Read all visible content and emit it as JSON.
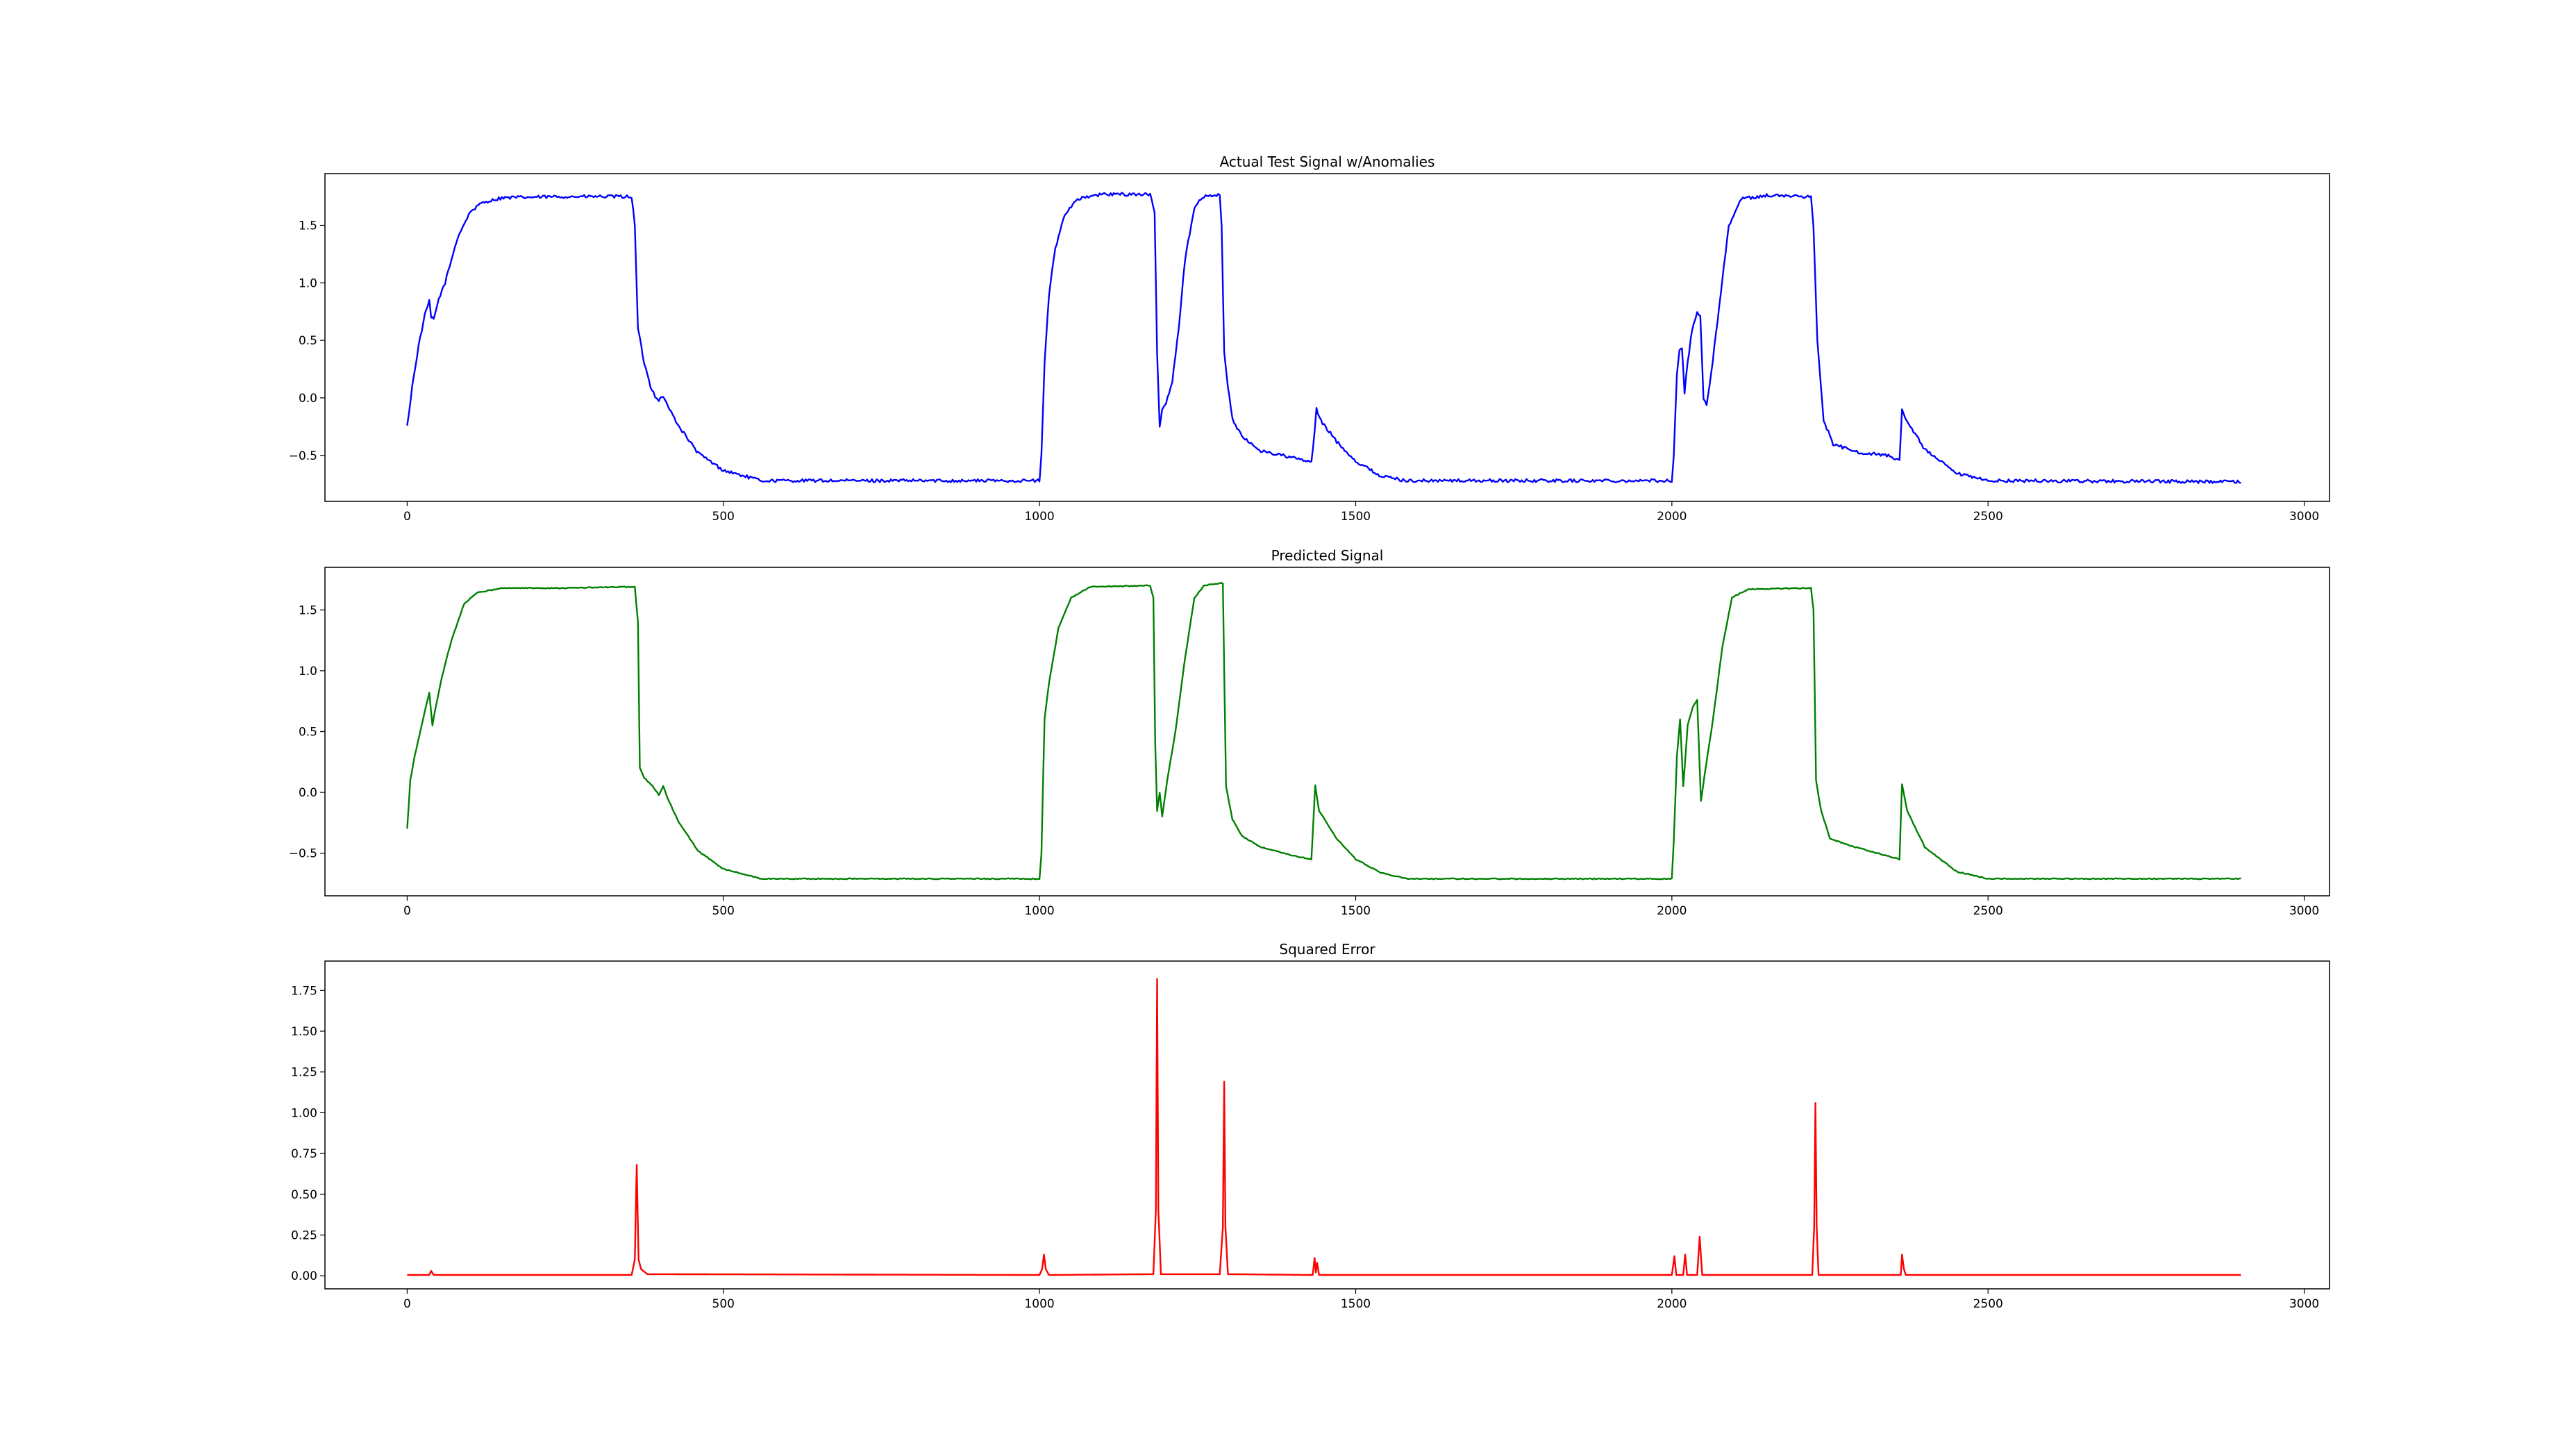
{
  "chart_data": [
    {
      "type": "line",
      "title": "Actual Test Signal w/Anomalies",
      "xlabel": "",
      "ylabel": "",
      "xlim": [
        -130,
        3040
      ],
      "ylim": [
        -0.9,
        1.95
      ],
      "xticks": [
        0,
        500,
        1000,
        1500,
        2000,
        2500,
        3000
      ],
      "yticks": [
        -0.5,
        0.0,
        0.5,
        1.0,
        1.5
      ],
      "ytick_labels": [
        "−0.5",
        "0.0",
        "0.5",
        "1.0",
        "1.5"
      ],
      "grid": false,
      "noise": 0.014,
      "series": [
        {
          "color": "#0000ff",
          "points": [
            [
              0,
              -0.25
            ],
            [
              8,
              0.1
            ],
            [
              18,
              0.45
            ],
            [
              28,
              0.72
            ],
            [
              35,
              0.84
            ],
            [
              38,
              0.7
            ],
            [
              42,
              0.68
            ],
            [
              50,
              0.86
            ],
            [
              60,
              1.0
            ],
            [
              80,
              1.4
            ],
            [
              100,
              1.62
            ],
            [
              120,
              1.7
            ],
            [
              150,
              1.74
            ],
            [
              250,
              1.75
            ],
            [
              355,
              1.75
            ],
            [
              360,
              1.5
            ],
            [
              365,
              0.6
            ],
            [
              375,
              0.3
            ],
            [
              385,
              0.1
            ],
            [
              392,
              0.02
            ],
            [
              398,
              -0.02
            ],
            [
              405,
              0.02
            ],
            [
              410,
              -0.05
            ],
            [
              430,
              -0.25
            ],
            [
              460,
              -0.48
            ],
            [
              500,
              -0.63
            ],
            [
              560,
              -0.72
            ],
            [
              700,
              -0.72
            ],
            [
              1000,
              -0.72
            ],
            [
              1003,
              -0.5
            ],
            [
              1008,
              0.3
            ],
            [
              1015,
              0.9
            ],
            [
              1025,
              1.3
            ],
            [
              1040,
              1.6
            ],
            [
              1060,
              1.73
            ],
            [
              1100,
              1.77
            ],
            [
              1175,
              1.77
            ],
            [
              1182,
              1.6
            ],
            [
              1186,
              0.4
            ],
            [
              1190,
              -0.25
            ],
            [
              1194,
              -0.1
            ],
            [
              1200,
              -0.05
            ],
            [
              1210,
              0.15
            ],
            [
              1220,
              0.6
            ],
            [
              1230,
              1.2
            ],
            [
              1245,
              1.66
            ],
            [
              1260,
              1.75
            ],
            [
              1285,
              1.77
            ],
            [
              1288,
              1.5
            ],
            [
              1292,
              0.4
            ],
            [
              1298,
              0.1
            ],
            [
              1305,
              -0.18
            ],
            [
              1320,
              -0.34
            ],
            [
              1350,
              -0.46
            ],
            [
              1400,
              -0.52
            ],
            [
              1430,
              -0.56
            ],
            [
              1435,
              -0.3
            ],
            [
              1438,
              -0.1
            ],
            [
              1445,
              -0.2
            ],
            [
              1470,
              -0.38
            ],
            [
              1500,
              -0.55
            ],
            [
              1540,
              -0.68
            ],
            [
              1580,
              -0.72
            ],
            [
              1800,
              -0.72
            ],
            [
              2000,
              -0.72
            ],
            [
              2003,
              -0.5
            ],
            [
              2008,
              0.2
            ],
            [
              2012,
              0.42
            ],
            [
              2016,
              0.44
            ],
            [
              2020,
              0.05
            ],
            [
              2025,
              0.3
            ],
            [
              2032,
              0.6
            ],
            [
              2040,
              0.75
            ],
            [
              2045,
              0.7
            ],
            [
              2050,
              0.0
            ],
            [
              2055,
              -0.05
            ],
            [
              2062,
              0.2
            ],
            [
              2075,
              0.8
            ],
            [
              2090,
              1.5
            ],
            [
              2110,
              1.73
            ],
            [
              2150,
              1.76
            ],
            [
              2220,
              1.75
            ],
            [
              2224,
              1.5
            ],
            [
              2230,
              0.5
            ],
            [
              2240,
              -0.2
            ],
            [
              2255,
              -0.4
            ],
            [
              2290,
              -0.47
            ],
            [
              2340,
              -0.5
            ],
            [
              2360,
              -0.55
            ],
            [
              2364,
              -0.1
            ],
            [
              2372,
              -0.2
            ],
            [
              2400,
              -0.45
            ],
            [
              2450,
              -0.66
            ],
            [
              2500,
              -0.72
            ],
            [
              2900,
              -0.73
            ]
          ]
        }
      ]
    },
    {
      "type": "line",
      "title": "Predicted Signal",
      "xlabel": "",
      "ylabel": "",
      "xlim": [
        -130,
        3040
      ],
      "ylim": [
        -0.85,
        1.85
      ],
      "xticks": [
        0,
        500,
        1000,
        1500,
        2000,
        2500,
        3000
      ],
      "yticks": [
        -0.5,
        0.0,
        0.5,
        1.0,
        1.5
      ],
      "ytick_labels": [
        "−0.5",
        "0.0",
        "0.5",
        "1.0",
        "1.5"
      ],
      "grid": false,
      "noise": 0.004,
      "series": [
        {
          "color": "#008000",
          "points": [
            [
              0,
              -0.3
            ],
            [
              5,
              0.1
            ],
            [
              12,
              0.3
            ],
            [
              25,
              0.6
            ],
            [
              35,
              0.82
            ],
            [
              40,
              0.55
            ],
            [
              45,
              0.7
            ],
            [
              55,
              0.95
            ],
            [
              70,
              1.25
            ],
            [
              90,
              1.55
            ],
            [
              110,
              1.64
            ],
            [
              150,
              1.68
            ],
            [
              250,
              1.68
            ],
            [
              360,
              1.69
            ],
            [
              365,
              1.4
            ],
            [
              368,
              0.2
            ],
            [
              375,
              0.12
            ],
            [
              388,
              0.05
            ],
            [
              398,
              -0.02
            ],
            [
              405,
              0.05
            ],
            [
              412,
              -0.05
            ],
            [
              430,
              -0.25
            ],
            [
              460,
              -0.48
            ],
            [
              500,
              -0.63
            ],
            [
              560,
              -0.71
            ],
            [
              700,
              -0.71
            ],
            [
              1000,
              -0.71
            ],
            [
              1003,
              -0.5
            ],
            [
              1008,
              0.6
            ],
            [
              1015,
              0.9
            ],
            [
              1030,
              1.35
            ],
            [
              1050,
              1.6
            ],
            [
              1080,
              1.69
            ],
            [
              1175,
              1.7
            ],
            [
              1180,
              1.6
            ],
            [
              1183,
              0.4
            ],
            [
              1186,
              -0.15
            ],
            [
              1190,
              0.0
            ],
            [
              1194,
              -0.2
            ],
            [
              1202,
              0.1
            ],
            [
              1215,
              0.5
            ],
            [
              1230,
              1.1
            ],
            [
              1245,
              1.6
            ],
            [
              1260,
              1.7
            ],
            [
              1290,
              1.72
            ],
            [
              1292,
              1.0
            ],
            [
              1295,
              0.05
            ],
            [
              1305,
              -0.22
            ],
            [
              1320,
              -0.36
            ],
            [
              1350,
              -0.45
            ],
            [
              1400,
              -0.52
            ],
            [
              1430,
              -0.55
            ],
            [
              1436,
              0.06
            ],
            [
              1442,
              -0.15
            ],
            [
              1470,
              -0.38
            ],
            [
              1500,
              -0.55
            ],
            [
              1540,
              -0.66
            ],
            [
              1580,
              -0.71
            ],
            [
              1800,
              -0.71
            ],
            [
              2000,
              -0.71
            ],
            [
              2003,
              -0.4
            ],
            [
              2008,
              0.3
            ],
            [
              2013,
              0.6
            ],
            [
              2018,
              0.05
            ],
            [
              2025,
              0.55
            ],
            [
              2033,
              0.7
            ],
            [
              2040,
              0.76
            ],
            [
              2046,
              -0.07
            ],
            [
              2052,
              0.15
            ],
            [
              2065,
              0.6
            ],
            [
              2080,
              1.2
            ],
            [
              2095,
              1.6
            ],
            [
              2120,
              1.67
            ],
            [
              2220,
              1.68
            ],
            [
              2224,
              1.5
            ],
            [
              2228,
              0.1
            ],
            [
              2236,
              -0.15
            ],
            [
              2250,
              -0.38
            ],
            [
              2290,
              -0.45
            ],
            [
              2340,
              -0.52
            ],
            [
              2360,
              -0.55
            ],
            [
              2364,
              0.07
            ],
            [
              2372,
              -0.15
            ],
            [
              2400,
              -0.45
            ],
            [
              2450,
              -0.65
            ],
            [
              2500,
              -0.71
            ],
            [
              2900,
              -0.71
            ]
          ]
        }
      ]
    },
    {
      "type": "line",
      "title": "Squared Error",
      "xlabel": "",
      "ylabel": "",
      "xlim": [
        -130,
        3040
      ],
      "ylim": [
        -0.08,
        1.93
      ],
      "xticks": [
        0,
        500,
        1000,
        1500,
        2000,
        2500,
        3000
      ],
      "yticks": [
        0.0,
        0.25,
        0.5,
        0.75,
        1.0,
        1.25,
        1.5,
        1.75
      ],
      "ytick_labels": [
        "0.00",
        "0.25",
        "0.50",
        "0.75",
        "1.00",
        "1.25",
        "1.50",
        "1.75"
      ],
      "grid": false,
      "noise": 0,
      "series": [
        {
          "color": "#ff0000",
          "points": [
            [
              0,
              0.005
            ],
            [
              35,
              0.005
            ],
            [
              38,
              0.03
            ],
            [
              42,
              0.005
            ],
            [
              355,
              0.005
            ],
            [
              360,
              0.1
            ],
            [
              363,
              0.68
            ],
            [
              366,
              0.1
            ],
            [
              370,
              0.04
            ],
            [
              380,
              0.01
            ],
            [
              1000,
              0.005
            ],
            [
              1004,
              0.04
            ],
            [
              1007,
              0.13
            ],
            [
              1010,
              0.04
            ],
            [
              1015,
              0.005
            ],
            [
              1180,
              0.01
            ],
            [
              1184,
              0.4
            ],
            [
              1186,
              1.82
            ],
            [
              1188,
              0.4
            ],
            [
              1192,
              0.01
            ],
            [
              1285,
              0.01
            ],
            [
              1290,
              0.3
            ],
            [
              1292,
              1.19
            ],
            [
              1294,
              0.3
            ],
            [
              1298,
              0.01
            ],
            [
              1432,
              0.005
            ],
            [
              1435,
              0.11
            ],
            [
              1437,
              0.02
            ],
            [
              1439,
              0.08
            ],
            [
              1442,
              0.005
            ],
            [
              2000,
              0.005
            ],
            [
              2004,
              0.12
            ],
            [
              2007,
              0.005
            ],
            [
              2018,
              0.005
            ],
            [
              2021,
              0.13
            ],
            [
              2024,
              0.005
            ],
            [
              2040,
              0.005
            ],
            [
              2044,
              0.24
            ],
            [
              2048,
              0.005
            ],
            [
              2222,
              0.005
            ],
            [
              2225,
              0.3
            ],
            [
              2227,
              1.06
            ],
            [
              2229,
              0.3
            ],
            [
              2232,
              0.005
            ],
            [
              2362,
              0.005
            ],
            [
              2364,
              0.13
            ],
            [
              2367,
              0.04
            ],
            [
              2370,
              0.005
            ],
            [
              2900,
              0.005
            ]
          ]
        }
      ]
    }
  ]
}
